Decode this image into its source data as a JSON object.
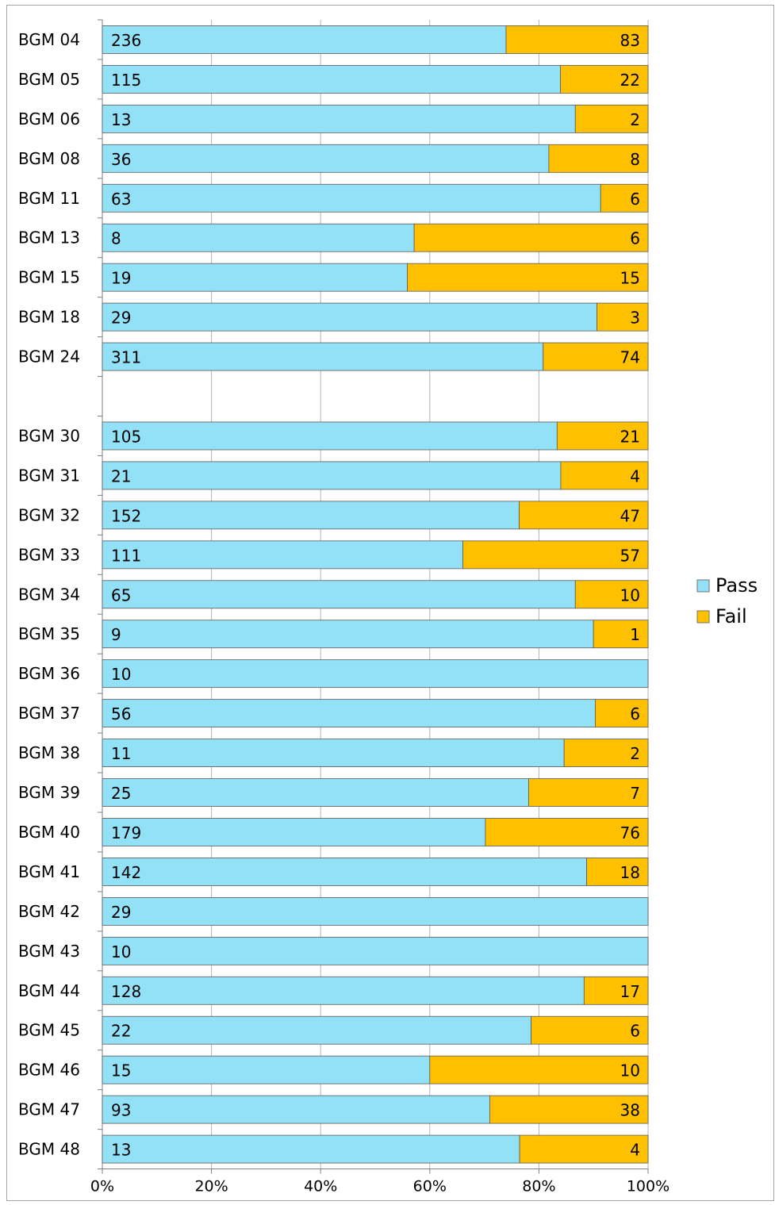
{
  "chart_data": {
    "type": "bar",
    "orientation": "horizontal",
    "stacked": "percent",
    "categories": [
      "BGM 04",
      "BGM 05",
      "BGM 06",
      "BGM 08",
      "BGM 11",
      "BGM 13",
      "BGM 15",
      "BGM 18",
      "BGM 24",
      "",
      "BGM 30",
      "BGM 31",
      "BGM 32",
      "BGM 33",
      "BGM 34",
      "BGM 35",
      "BGM 36",
      "BGM 37",
      "BGM 38",
      "BGM 39",
      "BGM 40",
      "BGM 41",
      "BGM 42",
      "BGM 43",
      "BGM 44",
      "BGM 45",
      "BGM 46",
      "BGM 47",
      "BGM 48"
    ],
    "series": [
      {
        "name": "Pass",
        "color": "#93e1f7",
        "values": [
          236,
          115,
          13,
          36,
          63,
          8,
          19,
          29,
          311,
          null,
          105,
          21,
          152,
          111,
          65,
          9,
          10,
          56,
          11,
          25,
          179,
          142,
          29,
          10,
          128,
          22,
          15,
          93,
          13
        ]
      },
      {
        "name": "Fail",
        "color": "#ffc000",
        "values": [
          83,
          22,
          2,
          8,
          6,
          6,
          15,
          3,
          74,
          null,
          21,
          4,
          47,
          57,
          10,
          1,
          0,
          6,
          2,
          7,
          76,
          18,
          0,
          0,
          17,
          6,
          10,
          38,
          4
        ]
      }
    ],
    "x_tick_labels": [
      "0%",
      "20%",
      "40%",
      "60%",
      "80%",
      "100%"
    ],
    "xlim": [
      0,
      100
    ],
    "grid": "vertical",
    "legend": "right",
    "data_labels": true
  }
}
